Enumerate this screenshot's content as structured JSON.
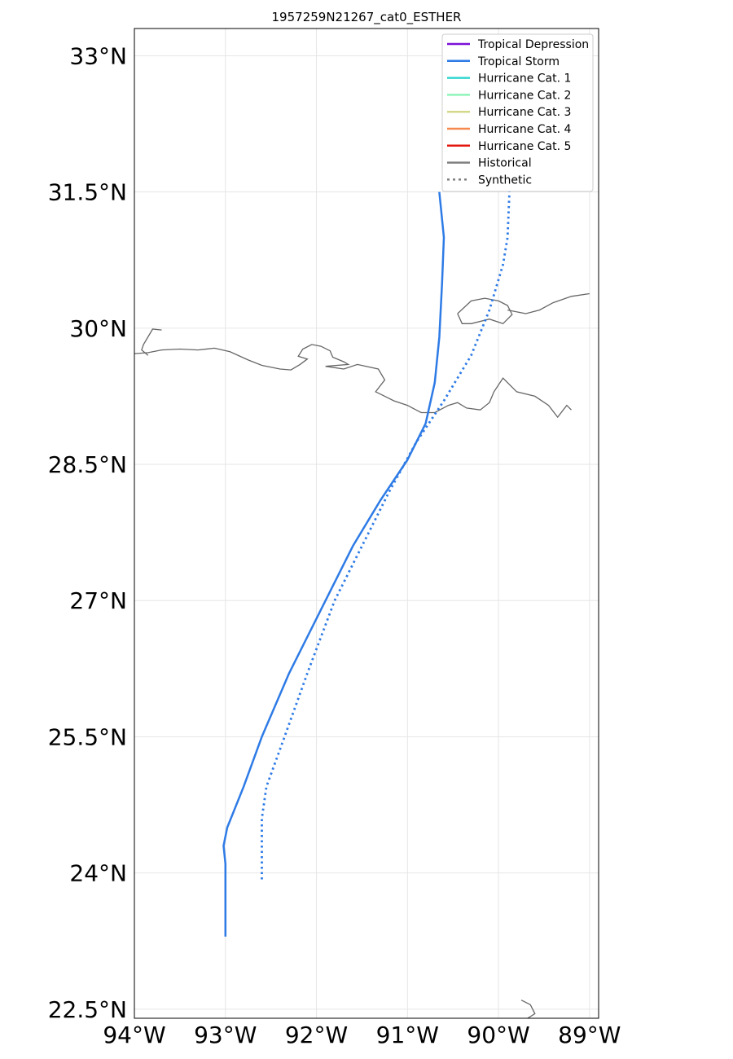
{
  "chart_data": {
    "type": "map",
    "title": "1957259N21267_cat0_ESTHER",
    "xlim": [
      -94,
      -88.9
    ],
    "ylim": [
      22.4,
      33.3
    ],
    "grid": true,
    "legend_placement": "top-right",
    "x_ticks": [
      {
        "value": -94,
        "label": "94°W"
      },
      {
        "value": -93,
        "label": "93°W"
      },
      {
        "value": -92,
        "label": "92°W"
      },
      {
        "value": -91,
        "label": "91°W"
      },
      {
        "value": -90,
        "label": "90°W"
      },
      {
        "value": -89,
        "label": "89°W"
      }
    ],
    "y_ticks": [
      {
        "value": 33,
        "label": "33°N"
      },
      {
        "value": 31.5,
        "label": "31.5°N"
      },
      {
        "value": 30,
        "label": "30°N"
      },
      {
        "value": 28.5,
        "label": "28.5°N"
      },
      {
        "value": 27,
        "label": "27°N"
      },
      {
        "value": 25.5,
        "label": "25.5°N"
      },
      {
        "value": 24,
        "label": "24°N"
      },
      {
        "value": 22.5,
        "label": "22.5°N"
      }
    ],
    "legend": [
      {
        "label": "Tropical Depression",
        "color": "#7a0fd6",
        "style": "solid"
      },
      {
        "label": "Tropical Storm",
        "color": "#2e7be6",
        "style": "solid"
      },
      {
        "label": "Hurricane Cat. 1",
        "color": "#33d6d0",
        "style": "solid"
      },
      {
        "label": "Hurricane Cat. 2",
        "color": "#8ef5b8",
        "style": "solid"
      },
      {
        "label": "Hurricane Cat. 3",
        "color": "#d4d98a",
        "style": "solid"
      },
      {
        "label": "Hurricane Cat. 4",
        "color": "#f5894e",
        "style": "solid"
      },
      {
        "label": "Hurricane Cat. 5",
        "color": "#e3170d",
        "style": "solid"
      },
      {
        "label": "Historical",
        "color": "#808080",
        "style": "solid"
      },
      {
        "label": "Synthetic",
        "color": "#808080",
        "style": "dotted"
      }
    ],
    "tracks": [
      {
        "kind": "historical",
        "category": "Tropical Storm",
        "color": "#2e7be6",
        "points": [
          [
            -93.0,
            23.3
          ],
          [
            -93.0,
            23.8
          ],
          [
            -93.0,
            24.1
          ],
          [
            -93.02,
            24.3
          ],
          [
            -92.98,
            24.5
          ],
          [
            -92.8,
            24.95
          ],
          [
            -92.6,
            25.5
          ],
          [
            -92.3,
            26.2
          ],
          [
            -91.9,
            27.0
          ],
          [
            -91.6,
            27.6
          ],
          [
            -91.3,
            28.1
          ],
          [
            -91.0,
            28.55
          ],
          [
            -90.8,
            28.95
          ],
          [
            -90.7,
            29.4
          ],
          [
            -90.65,
            29.9
          ],
          [
            -90.62,
            30.5
          ],
          [
            -90.6,
            31.0
          ],
          [
            -90.65,
            31.5
          ]
        ]
      },
      {
        "kind": "synthetic",
        "category": "Tropical Storm",
        "color": "#2e7be6",
        "points": [
          [
            -92.6,
            23.93
          ],
          [
            -92.6,
            24.2
          ],
          [
            -92.6,
            24.6
          ],
          [
            -92.55,
            24.95
          ],
          [
            -92.35,
            25.5
          ],
          [
            -92.1,
            26.2
          ],
          [
            -91.8,
            27.0
          ],
          [
            -91.5,
            27.6
          ],
          [
            -91.2,
            28.2
          ],
          [
            -90.9,
            28.75
          ],
          [
            -90.6,
            29.2
          ],
          [
            -90.3,
            29.7
          ],
          [
            -90.1,
            30.2
          ],
          [
            -89.95,
            30.7
          ],
          [
            -89.9,
            31.0
          ],
          [
            -89.88,
            31.5
          ]
        ]
      }
    ],
    "coastlines": [
      [
        [
          -94.0,
          29.72
        ],
        [
          -93.85,
          29.73
        ],
        [
          -93.7,
          29.76
        ],
        [
          -93.5,
          29.77
        ],
        [
          -93.3,
          29.76
        ],
        [
          -93.12,
          29.78
        ],
        [
          -92.95,
          29.74
        ],
        [
          -92.75,
          29.65
        ],
        [
          -92.6,
          29.59
        ],
        [
          -92.4,
          29.55
        ],
        [
          -92.28,
          29.54
        ],
        [
          -92.18,
          29.6
        ],
        [
          -92.1,
          29.66
        ],
        [
          -92.2,
          29.69
        ],
        [
          -92.15,
          29.77
        ],
        [
          -92.05,
          29.82
        ],
        [
          -91.95,
          29.8
        ],
        [
          -91.85,
          29.75
        ],
        [
          -91.82,
          29.68
        ],
        [
          -91.7,
          29.63
        ],
        [
          -91.65,
          29.6
        ],
        [
          -91.9,
          29.58
        ],
        [
          -91.7,
          29.55
        ],
        [
          -91.55,
          29.6
        ],
        [
          -91.32,
          29.55
        ],
        [
          -91.25,
          29.43
        ],
        [
          -91.35,
          29.3
        ],
        [
          -91.25,
          29.25
        ],
        [
          -91.15,
          29.2
        ],
        [
          -91.0,
          29.15
        ],
        [
          -90.85,
          29.07
        ],
        [
          -90.7,
          29.07
        ],
        [
          -90.55,
          29.15
        ],
        [
          -90.45,
          29.18
        ],
        [
          -90.35,
          29.12
        ],
        [
          -90.2,
          29.1
        ],
        [
          -90.1,
          29.18
        ],
        [
          -90.05,
          29.3
        ],
        [
          -89.95,
          29.45
        ],
        [
          -89.8,
          29.3
        ],
        [
          -89.6,
          29.25
        ],
        [
          -89.45,
          29.15
        ],
        [
          -89.35,
          29.02
        ],
        [
          -89.25,
          29.15
        ],
        [
          -89.2,
          29.1
        ]
      ],
      [
        [
          -90.45,
          30.16
        ],
        [
          -90.3,
          30.3
        ],
        [
          -90.15,
          30.33
        ],
        [
          -90.0,
          30.3
        ],
        [
          -89.9,
          30.25
        ],
        [
          -89.85,
          30.15
        ],
        [
          -89.95,
          30.05
        ],
        [
          -90.1,
          30.1
        ],
        [
          -90.3,
          30.05
        ],
        [
          -90.4,
          30.05
        ],
        [
          -90.45,
          30.16
        ]
      ],
      [
        [
          -89.9,
          30.2
        ],
        [
          -89.7,
          30.16
        ],
        [
          -89.55,
          30.2
        ],
        [
          -89.4,
          30.28
        ],
        [
          -89.2,
          30.35
        ],
        [
          -89.0,
          30.38
        ]
      ],
      [
        [
          -93.85,
          29.7
        ],
        [
          -93.92,
          29.76
        ],
        [
          -93.9,
          29.82
        ],
        [
          -93.8,
          29.99
        ],
        [
          -93.7,
          29.98
        ]
      ],
      [
        [
          -89.75,
          22.6
        ],
        [
          -89.65,
          22.55
        ],
        [
          -89.6,
          22.45
        ],
        [
          -89.68,
          22.4
        ]
      ]
    ]
  }
}
